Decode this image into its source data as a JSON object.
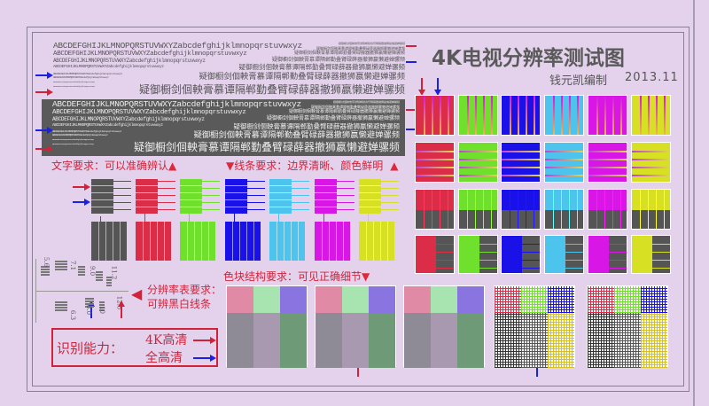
{
  "title": "4K电视分辨率测试图",
  "author": "钱元凯编制",
  "date": "2013.11",
  "latin_sample": "ABCDEFGHIJKLMNOPQRSTUVWXYZabcdefghijklmnopqrstuvwxyz",
  "cjk_sample": "疑御橱剑佪軮膏慕谭隔郸勤叠臂碌薛器撤狮嬴懒避婵骡频",
  "text_requirement": "文字要求：可以准确辨认",
  "line_requirement": "线条要求：边界清晰、颜色鲜明",
  "block_requirement": "色块结构要求：可见正确细节",
  "resolution_requirement_1": "分辨率表要求：",
  "resolution_requirement_2": "可辨黑白线条",
  "ability_label": "识别能力：",
  "ability_4k": "4K高清",
  "ability_fhd": "全高清",
  "wedge_labels": [
    "5.6",
    "7.1",
    "9.0",
    "11.2",
    "8.0",
    "10",
    "12.5",
    "6.3"
  ],
  "colors": {
    "background": "#e4d2ec",
    "gray": "#555555",
    "red": "#dc2d48",
    "green": "#6fe02c",
    "blue": "#1a10e8",
    "cyan": "#4cc4ee",
    "magenta": "#d816e6",
    "yellow": "#d8e024",
    "accent_red": "#d0233a",
    "accent_blue": "#1a22e0"
  },
  "bar_colors": [
    "gray",
    "red",
    "green",
    "blue",
    "cyan",
    "magenta",
    "yellow"
  ],
  "grid_colors": [
    "red",
    "green",
    "blue",
    "cyan",
    "magenta",
    "yellow"
  ],
  "patch_colors": [
    "#e08aa6",
    "#a8e4b0",
    "#8a74e0",
    "#8e8a96",
    "#a898b0",
    "#6e9a78"
  ]
}
